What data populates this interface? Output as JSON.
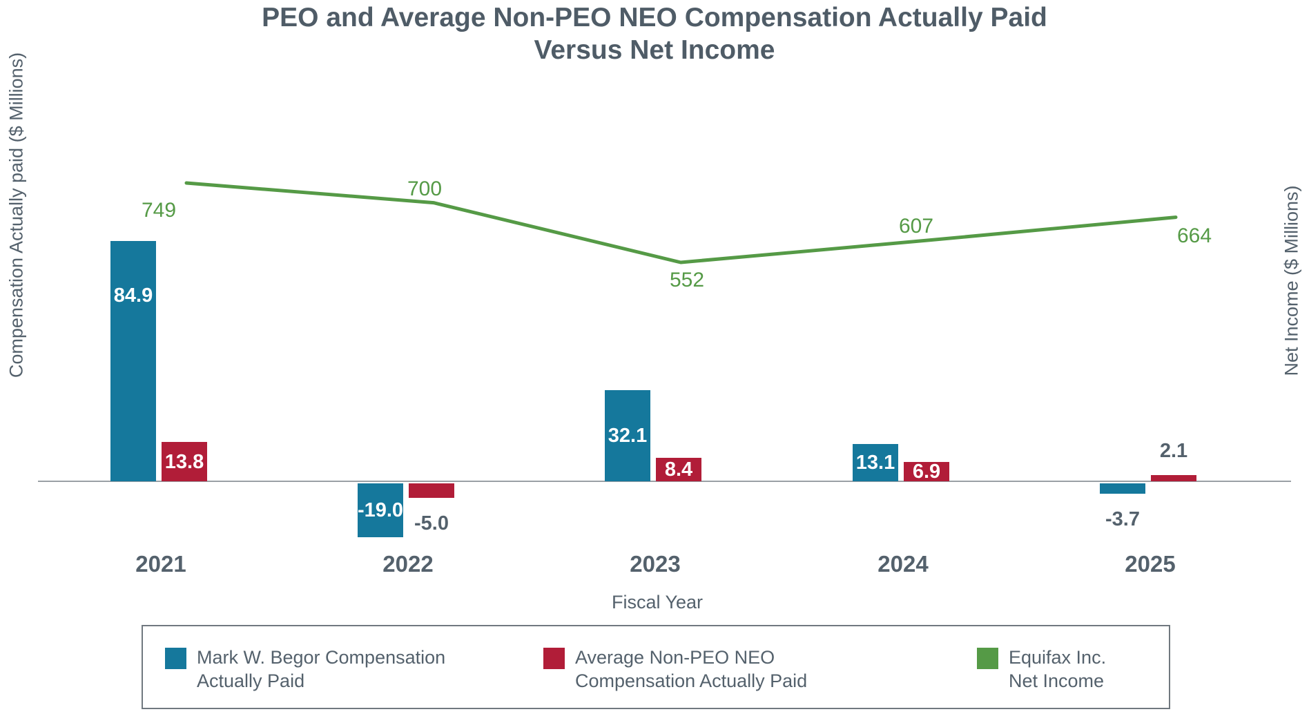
{
  "title": {
    "line1": "PEO and Average Non-PEO NEO Compensation Actually Paid",
    "line2": "Versus Net Income"
  },
  "axes": {
    "left_title": "Compensation Actually paid ($ Millions)",
    "right_title": "Net Income ($ Millions)",
    "x_title": "Fiscal Year"
  },
  "colors": {
    "peo_bar": "#15789c",
    "neo_bar": "#b11d38",
    "net_income_line": "#559a46",
    "text": "#54616c",
    "inside_label": "#ffffff",
    "axis_line": "#9aa0a5",
    "legend_border": "#70787f"
  },
  "chart_data": {
    "type": "bar+line",
    "title": "PEO and Average Non-PEO NEO Compensation Actually Paid Versus Net Income",
    "categories": [
      "2021",
      "2022",
      "2023",
      "2024",
      "2025"
    ],
    "xlabel": "Fiscal Year",
    "left_axis": {
      "title": "Compensation Actually paid ($ Millions)",
      "units": "$ Millions",
      "zero_baseline": true
    },
    "right_axis": {
      "title": "Net Income ($ Millions)",
      "units": "$ Millions"
    },
    "grid": false,
    "legend_position": "bottom",
    "series": [
      {
        "name": "Mark W. Begor Compensation Actually Paid",
        "type": "bar",
        "color_key": "peo_bar",
        "values": [
          84.9,
          -19.0,
          32.1,
          13.1,
          -3.7
        ],
        "value_labels": [
          "84.9",
          "-19.0",
          "32.1",
          "13.1",
          "-3.7"
        ],
        "label_placement": [
          "inside-top",
          "inside",
          "inside",
          "inside",
          "below"
        ]
      },
      {
        "name": "Average Non-PEO NEO Compensation Actually Paid",
        "type": "bar",
        "color_key": "neo_bar",
        "values": [
          13.8,
          -5.0,
          8.4,
          6.9,
          2.1
        ],
        "value_labels": [
          "13.8",
          "-5.0",
          "8.4",
          "6.9",
          "2.1"
        ],
        "label_placement": [
          "inside",
          "below",
          "inside",
          "inside",
          "above"
        ]
      },
      {
        "name": "Equifax Inc. Net Income",
        "type": "line",
        "color_key": "net_income_line",
        "values": [
          749,
          700,
          552,
          607,
          664
        ],
        "value_labels": [
          "749",
          "700",
          "552",
          "607",
          "664"
        ],
        "label_offsets": [
          [
            -40,
            40
          ],
          [
            -13,
            -20
          ],
          [
            9,
            26
          ],
          [
            -18,
            -20
          ],
          [
            27,
            27
          ]
        ]
      }
    ]
  },
  "legend": {
    "items": [
      {
        "line1": "Mark W. Begor Compensation",
        "line2": "Actually Paid",
        "color_key": "peo_bar"
      },
      {
        "line1": "Average Non-PEO NEO",
        "line2": "Compensation Actually Paid",
        "color_key": "neo_bar"
      },
      {
        "line1": "Equifax Inc.",
        "line2": "Net Income",
        "color_key": "net_income_line"
      }
    ]
  }
}
